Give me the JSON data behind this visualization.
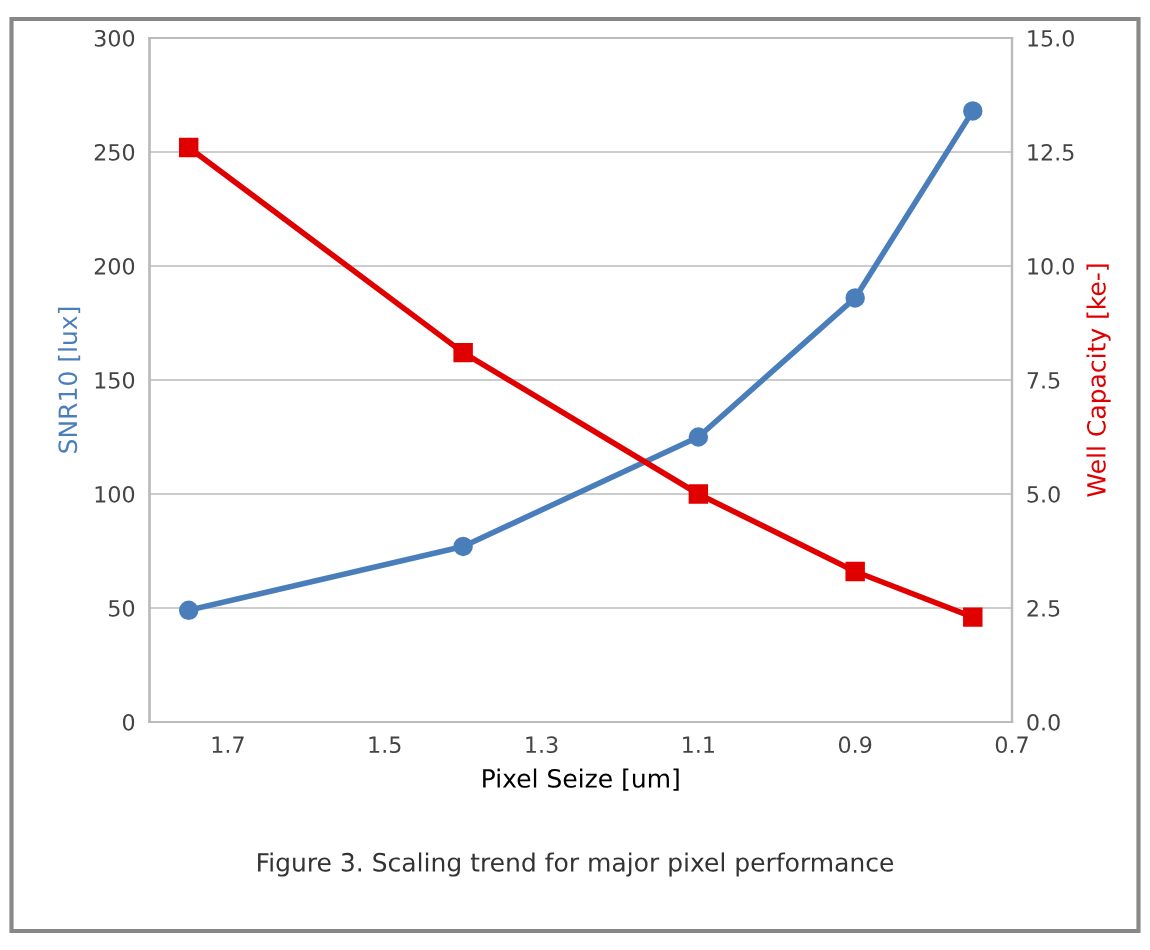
{
  "chart_data": {
    "type": "line",
    "xlabel": "Pixel Seize [um]",
    "ylabel": "SNR10 [lux]",
    "y2label": "Well Capacity [ke-]",
    "x": [
      1.75,
      1.4,
      1.1,
      0.9,
      0.75
    ],
    "series": [
      {
        "color": "#4a7ebb",
        "values": [
          49,
          77,
          125,
          186,
          268
        ],
        "marker": "circle"
      },
      {
        "color": "#e00000",
        "values": [
          12.6,
          8.1,
          5.0,
          3.3,
          2.3
        ],
        "marker": "square",
        "axis": "y2"
      }
    ],
    "xlim": [
      1.8,
      0.7
    ],
    "xticks": [
      1.7,
      1.5,
      1.3,
      1.1,
      0.9,
      0.7
    ],
    "ylim": [
      0,
      300
    ],
    "yticks": [
      0,
      50,
      100,
      150,
      200,
      250,
      300
    ],
    "y2lim": [
      0,
      15
    ],
    "y2ticks": [
      {
        "value": 0,
        "label": "0.0"
      },
      {
        "value": 2.5,
        "label": "2.5"
      },
      {
        "value": 5,
        "label": "5.0"
      },
      {
        "value": 7.5,
        "label": "7.5"
      },
      {
        "value": 10,
        "label": "10.0"
      },
      {
        "value": 12.5,
        "label": "12.5"
      },
      {
        "value": 15,
        "label": "15.0"
      }
    ],
    "grid": "y",
    "annotations": [
      "Figure 3. Scaling trend for major pixel performance"
    ]
  }
}
